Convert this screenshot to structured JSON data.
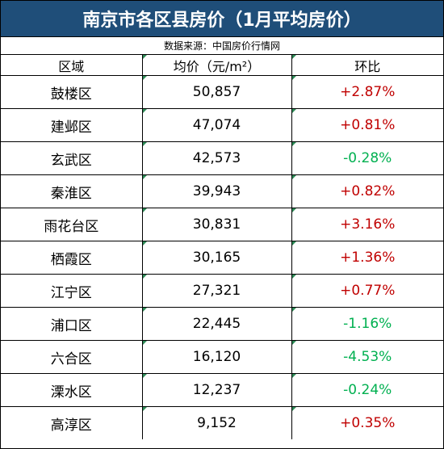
{
  "title": "南京市各区县房价（1月平均房价）",
  "source": "数据来源：中国房价行情网",
  "headers": {
    "district": "区域",
    "price": "均价（元/m²）",
    "change": "环比"
  },
  "colors": {
    "header_bg": "#1f4e79",
    "positive": "#c00000",
    "negative": "#00b050"
  },
  "rows": [
    {
      "district": "鼓楼区",
      "price": "50,857",
      "change": "+2.87%"
    },
    {
      "district": "建邺区",
      "price": "47,074",
      "change": "+0.81%"
    },
    {
      "district": "玄武区",
      "price": "42,573",
      "change": "-0.28%"
    },
    {
      "district": "秦淮区",
      "price": "39,943",
      "change": "+0.82%"
    },
    {
      "district": "雨花台区",
      "price": "30,831",
      "change": "+3.16%"
    },
    {
      "district": "栖霞区",
      "price": "30,165",
      "change": "+1.36%"
    },
    {
      "district": "江宁区",
      "price": "27,321",
      "change": "+0.77%"
    },
    {
      "district": "浦口区",
      "price": "22,445",
      "change": "-1.16%"
    },
    {
      "district": "六合区",
      "price": "16,120",
      "change": "-4.53%"
    },
    {
      "district": "溧水区",
      "price": "12,237",
      "change": "-0.24%"
    },
    {
      "district": "高淳区",
      "price": "9,152",
      "change": "+0.35%"
    }
  ]
}
